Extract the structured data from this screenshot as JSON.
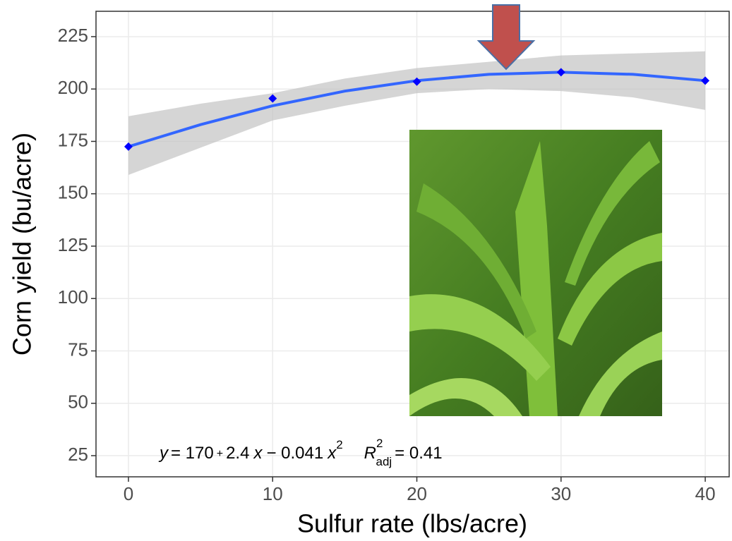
{
  "chart_data": {
    "type": "scatter",
    "x_label": "Sulfur rate (lbs/acre)",
    "y_label": "Corn yield (bu/acre)",
    "x": [
      0,
      10,
      20,
      30,
      40
    ],
    "values": [
      172.5,
      195.5,
      203.5,
      208,
      204
    ],
    "color": "#0000ff",
    "fit": {
      "x": [
        0,
        5,
        10,
        15,
        20,
        25,
        30,
        35,
        40
      ],
      "values": [
        172.5,
        183,
        192,
        199,
        204,
        207,
        208,
        207,
        204
      ],
      "lower": [
        159,
        172,
        185,
        192,
        198,
        200,
        199,
        196,
        190
      ],
      "upper": [
        187,
        193,
        198,
        205,
        210,
        213,
        216,
        217,
        218
      ],
      "color": "#3366ff",
      "band_color": "#bebebe"
    },
    "annotation": [
      "y",
      "= 170",
      "+",
      "2.4",
      "x",
      "− 0.041",
      "x",
      "2",
      "R",
      "2",
      "adj",
      "= 0.41"
    ],
    "xlim": [
      -2.25,
      41.66
    ],
    "ylim": [
      14.9,
      237.1
    ],
    "xticks": [
      0,
      10,
      20,
      30,
      40
    ],
    "yticks": [
      25,
      50,
      75,
      100,
      125,
      150,
      175,
      200,
      225
    ],
    "grid": true
  }
}
